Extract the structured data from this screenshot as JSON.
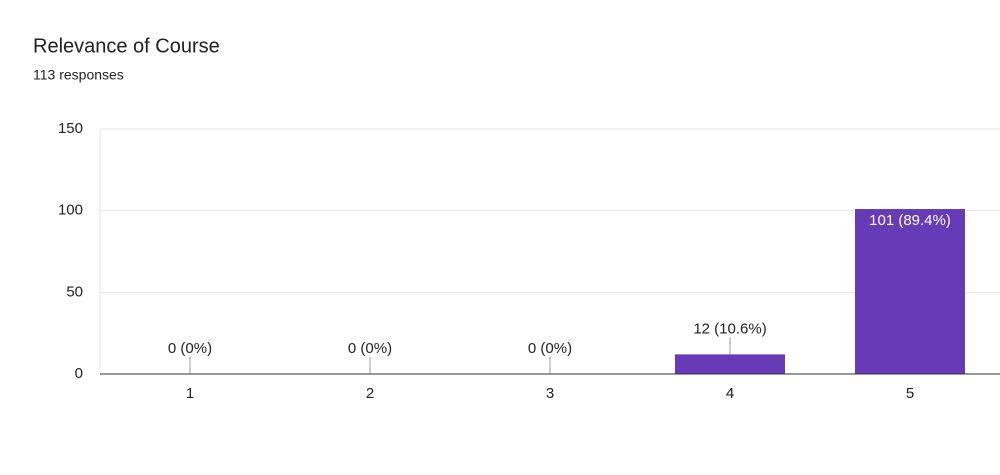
{
  "chart_data": {
    "type": "bar",
    "title": "Relevance of Course",
    "subtitle": "113 responses",
    "categories": [
      "1",
      "2",
      "3",
      "4",
      "5"
    ],
    "values": [
      0,
      0,
      0,
      12,
      101
    ],
    "value_labels": [
      "0 (0%)",
      "0 (0%)",
      "0 (0%)",
      "12 (10.6%)",
      "101 (89.4%)"
    ],
    "color": "#673ab7",
    "ylim": [
      0,
      150
    ],
    "yticks": [
      0,
      50,
      100,
      150
    ],
    "grid": true
  }
}
